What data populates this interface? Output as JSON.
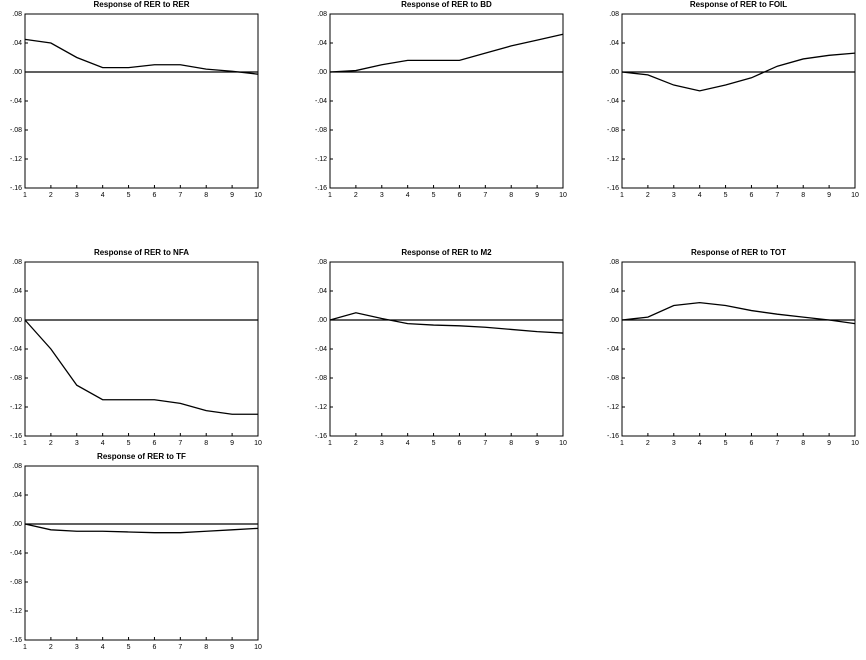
{
  "chart_data": [
    {
      "type": "line",
      "title": "Response of RER to RER",
      "color": "#000000",
      "x": [
        1,
        2,
        3,
        4,
        5,
        6,
        7,
        8,
        9,
        10
      ],
      "values": [
        0.045,
        0.04,
        0.02,
        0.006,
        0.006,
        0.01,
        0.01,
        0.004,
        0.001,
        -0.003
      ],
      "xlim": [
        1,
        10
      ],
      "xticks": [
        1,
        2,
        3,
        4,
        5,
        6,
        7,
        8,
        9,
        10
      ],
      "ylim": [
        -0.16,
        0.08
      ],
      "yticks": [
        {
          "value": 0.08,
          "label": ".08"
        },
        {
          "value": 0.04,
          "label": ".04"
        },
        {
          "value": 0,
          "label": ".00"
        },
        {
          "value": -0.04,
          "label": "-.04"
        },
        {
          "value": -0.08,
          "label": "-.08"
        },
        {
          "value": -0.12,
          "label": "-.12"
        },
        {
          "value": -0.16,
          "label": "-.16"
        }
      ]
    },
    {
      "type": "line",
      "title": "Response of RER to BD",
      "color": "#000000",
      "x": [
        1,
        2,
        3,
        4,
        5,
        6,
        7,
        8,
        9,
        10
      ],
      "values": [
        0,
        0.002,
        0.01,
        0.016,
        0.016,
        0.016,
        0.026,
        0.036,
        0.044,
        0.052
      ],
      "xlim": [
        1,
        10
      ],
      "xticks": [
        1,
        2,
        3,
        4,
        5,
        6,
        7,
        8,
        9,
        10
      ],
      "ylim": [
        -0.16,
        0.08
      ],
      "yticks": [
        {
          "value": 0.08,
          "label": ".08"
        },
        {
          "value": 0.04,
          "label": ".04"
        },
        {
          "value": 0,
          "label": ".00"
        },
        {
          "value": -0.04,
          "label": "-.04"
        },
        {
          "value": -0.08,
          "label": "-.08"
        },
        {
          "value": -0.12,
          "label": "-.12"
        },
        {
          "value": -0.16,
          "label": "-.16"
        }
      ]
    },
    {
      "type": "line",
      "title": "Response of RER to FOIL",
      "color": "#000000",
      "x": [
        1,
        2,
        3,
        4,
        5,
        6,
        7,
        8,
        9,
        10
      ],
      "values": [
        0,
        -0.004,
        -0.018,
        -0.026,
        -0.018,
        -0.008,
        0.008,
        0.018,
        0.023,
        0.026
      ],
      "xlim": [
        1,
        10
      ],
      "xticks": [
        1,
        2,
        3,
        4,
        5,
        6,
        7,
        8,
        9,
        10
      ],
      "ylim": [
        -0.16,
        0.08
      ],
      "yticks": [
        {
          "value": 0.08,
          "label": ".08"
        },
        {
          "value": 0.04,
          "label": ".04"
        },
        {
          "value": 0,
          "label": ".00"
        },
        {
          "value": -0.04,
          "label": "-.04"
        },
        {
          "value": -0.08,
          "label": "-.08"
        },
        {
          "value": -0.12,
          "label": "-.12"
        },
        {
          "value": -0.16,
          "label": "-.16"
        }
      ]
    },
    {
      "type": "line",
      "title": "Response of RER to NFA",
      "color": "#000000",
      "x": [
        1,
        2,
        3,
        4,
        5,
        6,
        7,
        8,
        9,
        10
      ],
      "values": [
        0,
        -0.04,
        -0.09,
        -0.11,
        -0.11,
        -0.11,
        -0.115,
        -0.125,
        -0.13,
        -0.13
      ],
      "xlim": [
        1,
        10
      ],
      "xticks": [
        1,
        2,
        3,
        4,
        5,
        6,
        7,
        8,
        9,
        10
      ],
      "ylim": [
        -0.16,
        0.08
      ],
      "yticks": [
        {
          "value": 0.08,
          "label": ".08"
        },
        {
          "value": 0.04,
          "label": ".04"
        },
        {
          "value": 0,
          "label": ".00"
        },
        {
          "value": -0.04,
          "label": "-.04"
        },
        {
          "value": -0.08,
          "label": "-.08"
        },
        {
          "value": -0.12,
          "label": "-.12"
        },
        {
          "value": -0.16,
          "label": "-.16"
        }
      ]
    },
    {
      "type": "line",
      "title": "Response of RER to M2",
      "color": "#000000",
      "x": [
        1,
        2,
        3,
        4,
        5,
        6,
        7,
        8,
        9,
        10
      ],
      "values": [
        0,
        0.01,
        0.002,
        -0.005,
        -0.007,
        -0.008,
        -0.01,
        -0.013,
        -0.016,
        -0.018
      ],
      "xlim": [
        1,
        10
      ],
      "xticks": [
        1,
        2,
        3,
        4,
        5,
        6,
        7,
        8,
        9,
        10
      ],
      "ylim": [
        -0.16,
        0.08
      ],
      "yticks": [
        {
          "value": 0.08,
          "label": ".08"
        },
        {
          "value": 0.04,
          "label": ".04"
        },
        {
          "value": 0,
          "label": ".00"
        },
        {
          "value": -0.04,
          "label": "-.04"
        },
        {
          "value": -0.08,
          "label": "-.08"
        },
        {
          "value": -0.12,
          "label": "-.12"
        },
        {
          "value": -0.16,
          "label": "-.16"
        }
      ]
    },
    {
      "type": "line",
      "title": "Response of RER to TOT",
      "color": "#000000",
      "x": [
        1,
        2,
        3,
        4,
        5,
        6,
        7,
        8,
        9,
        10
      ],
      "values": [
        0,
        0.004,
        0.02,
        0.024,
        0.02,
        0.013,
        0.008,
        0.004,
        0,
        -0.005
      ],
      "xlim": [
        1,
        10
      ],
      "xticks": [
        1,
        2,
        3,
        4,
        5,
        6,
        7,
        8,
        9,
        10
      ],
      "ylim": [
        -0.16,
        0.08
      ],
      "yticks": [
        {
          "value": 0.08,
          "label": ".08"
        },
        {
          "value": 0.04,
          "label": ".04"
        },
        {
          "value": 0,
          "label": ".00"
        },
        {
          "value": -0.04,
          "label": "-.04"
        },
        {
          "value": -0.08,
          "label": "-.08"
        },
        {
          "value": -0.12,
          "label": "-.12"
        },
        {
          "value": -0.16,
          "label": "-.16"
        }
      ]
    },
    {
      "type": "line",
      "title": "Response of RER to TF",
      "color": "#000000",
      "x": [
        1,
        2,
        3,
        4,
        5,
        6,
        7,
        8,
        9,
        10
      ],
      "values": [
        0,
        -0.008,
        -0.01,
        -0.01,
        -0.011,
        -0.012,
        -0.012,
        -0.01,
        -0.008,
        -0.006
      ],
      "xlim": [
        1,
        10
      ],
      "xticks": [
        1,
        2,
        3,
        4,
        5,
        6,
        7,
        8,
        9,
        10
      ],
      "ylim": [
        -0.16,
        0.08
      ],
      "yticks": [
        {
          "value": 0.08,
          "label": ".08"
        },
        {
          "value": 0.04,
          "label": ".04"
        },
        {
          "value": 0,
          "label": ".00"
        },
        {
          "value": -0.04,
          "label": "-.04"
        },
        {
          "value": -0.08,
          "label": "-.08"
        },
        {
          "value": -0.12,
          "label": "-.12"
        },
        {
          "value": -0.16,
          "label": "-.16"
        }
      ]
    }
  ]
}
